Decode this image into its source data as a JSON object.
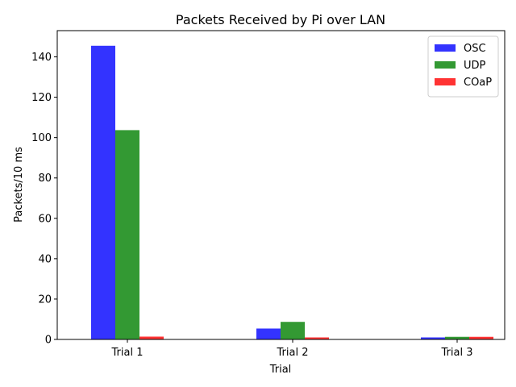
{
  "chart_data": {
    "type": "bar",
    "title": "Packets Received by Pi over LAN",
    "xlabel": "Trial",
    "ylabel": "Packets/10 ms",
    "categories": [
      "Trial 1",
      "Trial 2",
      "Trial 3"
    ],
    "series": [
      {
        "name": "OSC",
        "values": [
          145.5,
          5.4,
          1.0
        ],
        "color": "#0000ff"
      },
      {
        "name": "UDP",
        "values": [
          103.7,
          8.7,
          1.3
        ],
        "color": "#008000"
      },
      {
        "name": "COaP",
        "values": [
          1.4,
          1.0,
          1.3
        ],
        "color": "#ff0000"
      }
    ],
    "ylim": [
      0,
      153
    ],
    "yticks": [
      0,
      20,
      40,
      60,
      80,
      100,
      120,
      140
    ],
    "grid": false,
    "legend_position": "top-right"
  }
}
